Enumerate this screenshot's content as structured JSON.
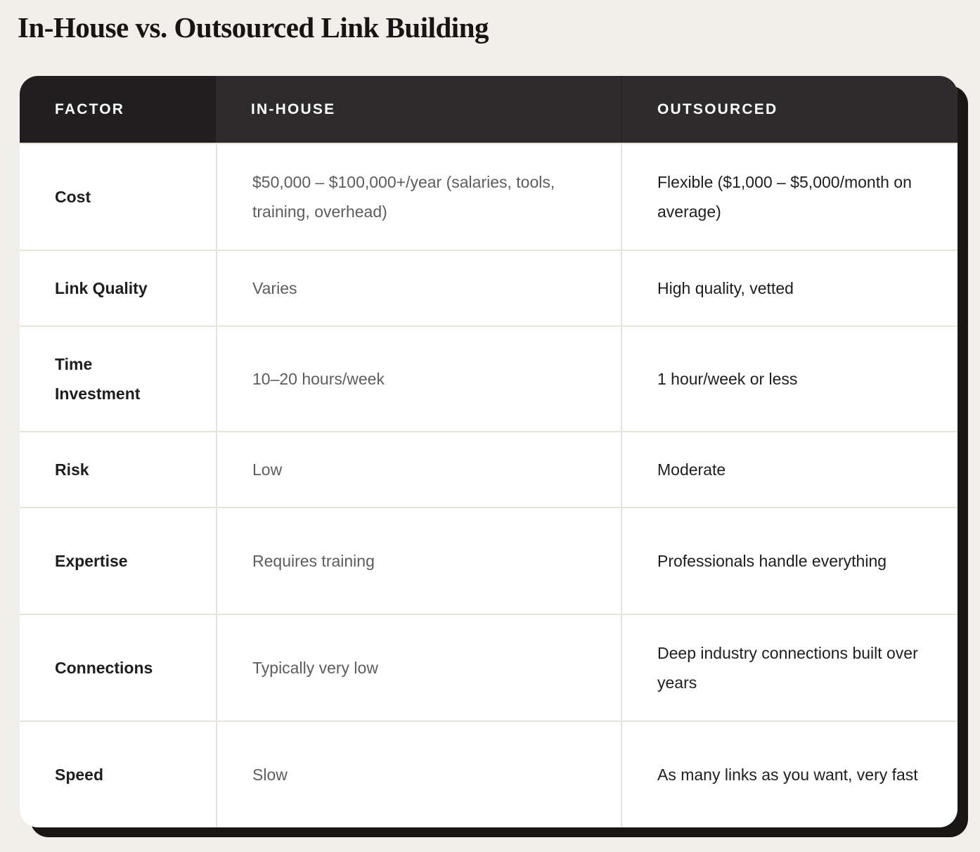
{
  "page": {
    "title": "In-House vs. Outsourced Link Building"
  },
  "table": {
    "columns": [
      {
        "label": "FACTOR"
      },
      {
        "label": "IN-HOUSE"
      },
      {
        "label": "OUTSOURCED"
      }
    ],
    "rows": [
      {
        "factor": "Cost",
        "in_house": "$50,000 – $100,000+/year (salaries, tools, training, overhead)",
        "outsourced": "Flexible ($1,000 – $5,000/month on average)"
      },
      {
        "factor": "Link Quality",
        "in_house": "Varies",
        "outsourced": "High quality, vetted"
      },
      {
        "factor": "Time Investment",
        "in_house": "10–20 hours/week",
        "outsourced": "1 hour/week or less"
      },
      {
        "factor": "Risk",
        "in_house": "Low",
        "outsourced": "Moderate"
      },
      {
        "factor": "Expertise",
        "in_house": "Requires training",
        "outsourced": "Professionals handle everything"
      },
      {
        "factor": "Connections",
        "in_house": "Typically very low",
        "outsourced": "Deep industry connections built over years"
      },
      {
        "factor": "Speed",
        "in_house": "Slow",
        "outsourced": "As many links as you want, very fast"
      }
    ],
    "colors": {
      "page_background": "#f1efe9",
      "table_background": "#ffffff",
      "header_background": "#2d2b2b",
      "header_factor_background": "#201e1e",
      "header_text": "#ffffff",
      "row_border": "#e9e4da",
      "in_house_text": "#5d5d5d",
      "dark_text": "#1f1e1e",
      "shadow": "#181716"
    }
  }
}
